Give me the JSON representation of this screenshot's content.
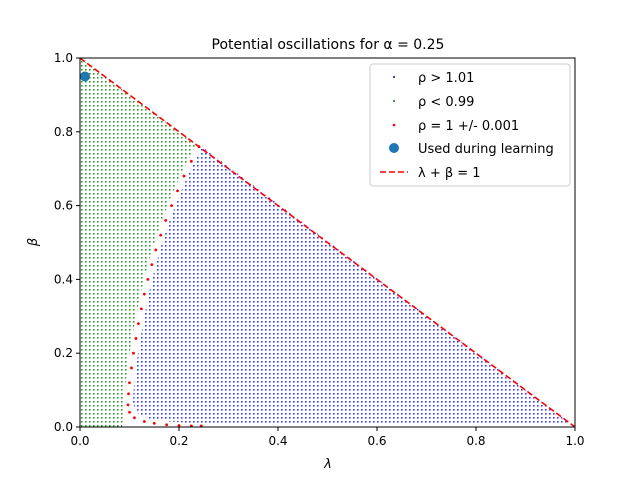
{
  "chart_data": {
    "type": "scatter",
    "title": "Potential oscillations for α = 0.25",
    "xlabel": "λ",
    "ylabel": "β",
    "xlim": [
      0,
      1
    ],
    "ylim": [
      0,
      1
    ],
    "xticks": [
      "0.0",
      "0.2",
      "0.4",
      "0.6",
      "0.8",
      "1.0"
    ],
    "yticks": [
      "0.0",
      "0.2",
      "0.4",
      "0.6",
      "0.8",
      "1.0"
    ],
    "grid": false,
    "legend_position": "top-right",
    "colors": {
      "rho_gt": "#0000ff",
      "rho_lt": "#008000",
      "rho_eq": "#ff0000",
      "learning_point": "#1f77b4",
      "line": "#ff0000"
    },
    "series": [
      {
        "name": "ρ > 1.01",
        "kind": "region",
        "description_key": "blue"
      },
      {
        "name": "ρ < 0.99",
        "kind": "region",
        "description_key": "green"
      },
      {
        "name": "ρ = 1 +/- 0.001",
        "kind": "points",
        "points": [
          [
            0.24,
            0.76
          ],
          [
            0.225,
            0.72
          ],
          [
            0.21,
            0.68
          ],
          [
            0.197,
            0.64
          ],
          [
            0.185,
            0.6
          ],
          [
            0.173,
            0.56
          ],
          [
            0.163,
            0.52
          ],
          [
            0.153,
            0.48
          ],
          [
            0.145,
            0.44
          ],
          [
            0.137,
            0.4
          ],
          [
            0.13,
            0.36
          ],
          [
            0.124,
            0.32
          ],
          [
            0.118,
            0.28
          ],
          [
            0.113,
            0.24
          ],
          [
            0.108,
            0.2
          ],
          [
            0.104,
            0.16
          ],
          [
            0.1,
            0.12
          ],
          [
            0.098,
            0.09
          ],
          [
            0.097,
            0.06
          ],
          [
            0.1,
            0.04
          ],
          [
            0.11,
            0.025
          ],
          [
            0.13,
            0.015
          ],
          [
            0.15,
            0.01
          ],
          [
            0.175,
            0.006
          ],
          [
            0.2,
            0.004
          ],
          [
            0.225,
            0.003
          ],
          [
            0.245,
            0.003
          ]
        ]
      },
      {
        "name": "Used during learning",
        "kind": "marker",
        "points": [
          [
            0.01,
            0.95
          ]
        ]
      },
      {
        "name": "λ + β = 1",
        "kind": "line",
        "points": [
          [
            0,
            1
          ],
          [
            1,
            0
          ]
        ]
      }
    ]
  }
}
